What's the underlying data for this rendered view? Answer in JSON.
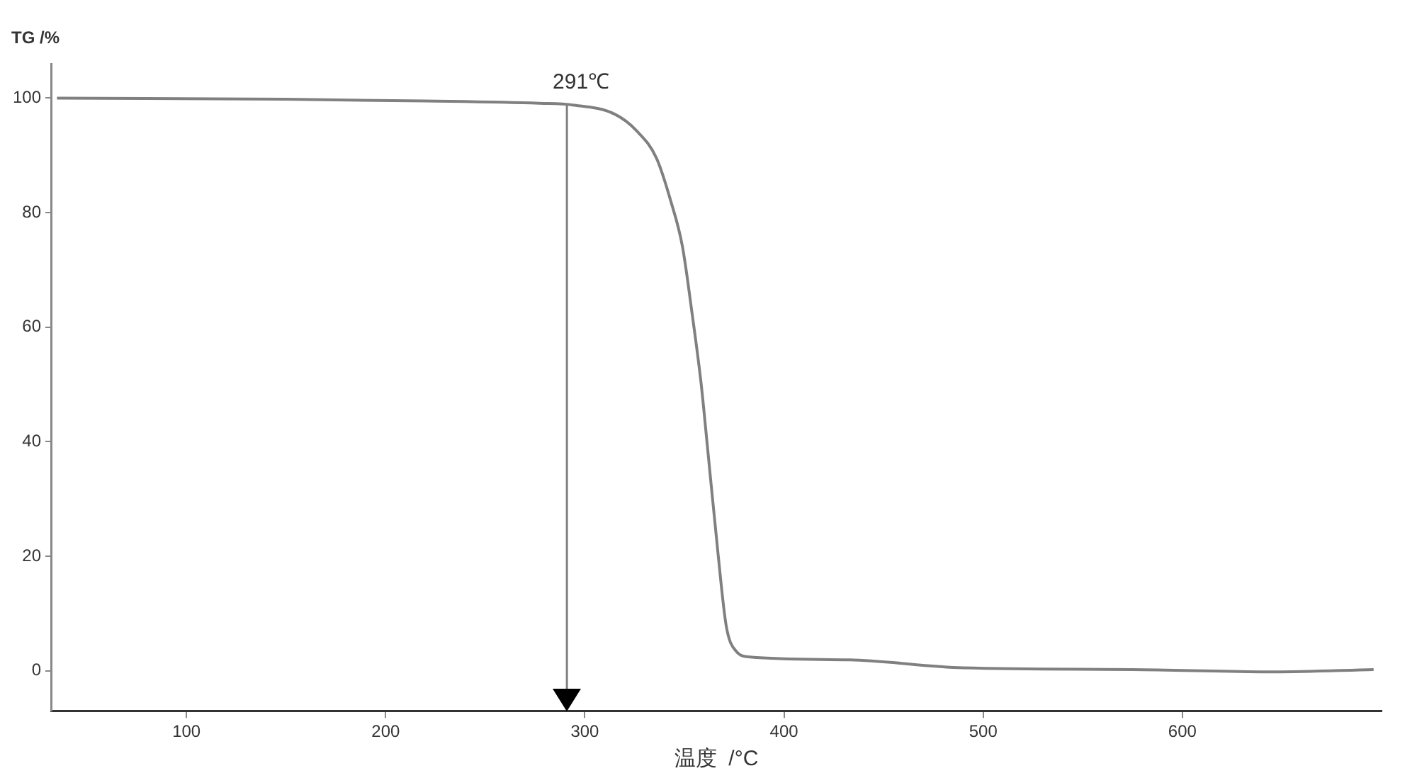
{
  "chart_data": {
    "type": "line",
    "xlabel": "温度  /°C",
    "ylabel": "TG /%",
    "xlim": [
      32,
      700
    ],
    "xticks": [
      100,
      200,
      300,
      400,
      500,
      600
    ],
    "ylim": [
      -7,
      106
    ],
    "yticks": [
      0,
      20,
      40,
      60,
      80,
      100
    ],
    "grid": false,
    "legend": false,
    "marker": "none",
    "line_style": "solid",
    "series": [
      {
        "color": "#808080",
        "x": [
          35,
          150,
          220,
          277,
          294,
          315,
          326,
          336,
          343,
          349,
          354,
          358.5,
          361.5,
          367,
          371,
          376,
          383,
          433,
          490,
          575,
          646,
          696
        ],
        "values": [
          100,
          99.8,
          99.5,
          99.1,
          98.8,
          97.2,
          94.3,
          89.5,
          82.2,
          74.1,
          62,
          49.8,
          39.3,
          20,
          7.8,
          3.4,
          2.4,
          1.9,
          0.5,
          0.2,
          -0.2,
          0.2
        ]
      }
    ],
    "ref_lines": [
      {
        "axis": "x",
        "value": 291,
        "label": "291℃",
        "color": "#808080"
      }
    ]
  }
}
